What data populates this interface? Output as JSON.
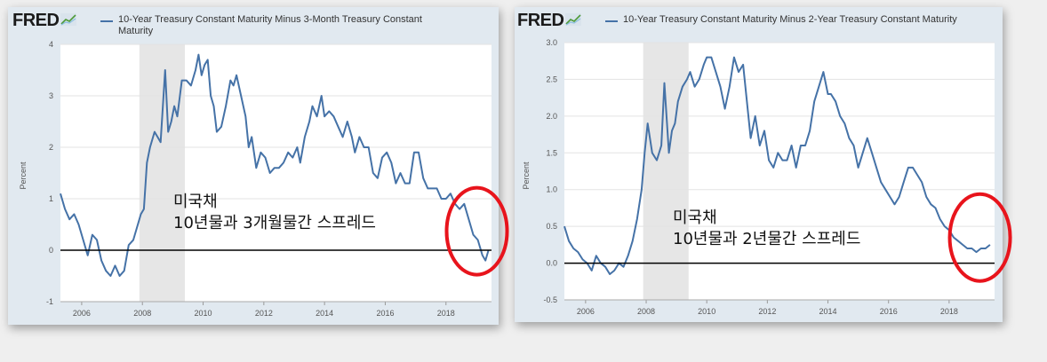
{
  "panels": [
    {
      "logo": "FRED",
      "legend": "10-Year Treasury Constant Maturity Minus 3-Month Treasury Constant Maturity",
      "legend_line1": "10-Year Treasury Constant Maturity Minus 3-Month Treasury Constant",
      "legend_line2": "Maturity",
      "ylabel": "Percent",
      "annotation_line1": "미국채",
      "annotation_line2": "10년물과 3개월물간 스프레드"
    },
    {
      "logo": "FRED",
      "legend": "10-Year Treasury Constant Maturity Minus 2-Year Treasury Constant Maturity",
      "ylabel": "Percent",
      "annotation_line1": "미국채",
      "annotation_line2": "10년물과 2년물간 스프레드"
    }
  ],
  "colors": {
    "line": "#4572a7",
    "recession": "#e6e6e6",
    "highlight_circle": "#e8141c",
    "zero_line": "#000000"
  },
  "chart_data": [
    {
      "type": "line",
      "title": "10-Year Treasury Constant Maturity Minus 3-Month Treasury Constant Maturity",
      "ylabel": "Percent",
      "xlim": [
        2005.3,
        2019.5
      ],
      "ylim": [
        -1,
        4
      ],
      "x_ticks": [
        "2006",
        "2008",
        "2010",
        "2012",
        "2014",
        "2016",
        "2018"
      ],
      "y_ticks": [
        "-1",
        "0",
        "1",
        "2",
        "3",
        "4"
      ],
      "grid": true,
      "recession": [
        2007.9,
        2009.4
      ],
      "reference_line": 0,
      "highlight": {
        "x": 2018.9,
        "y": 0.3
      },
      "series": [
        {
          "x": [
            2005.3,
            2005.45,
            2005.6,
            2005.75,
            2005.9,
            2006.05,
            2006.2,
            2006.35,
            2006.5,
            2006.65,
            2006.8,
            2006.95,
            2007.1,
            2007.25,
            2007.4,
            2007.55,
            2007.7,
            2007.85,
            2007.95,
            2008.05,
            2008.15,
            2008.25,
            2008.4,
            2008.5,
            2008.6,
            2008.75,
            2008.85,
            2008.95,
            2009.05,
            2009.15,
            2009.3,
            2009.45,
            2009.6,
            2009.75,
            2009.85,
            2009.95,
            2010.05,
            2010.15,
            2010.25,
            2010.35,
            2010.45,
            2010.6,
            2010.75,
            2010.9,
            2011.0,
            2011.1,
            2011.25,
            2011.4,
            2011.5,
            2011.6,
            2011.75,
            2011.9,
            2012.05,
            2012.2,
            2012.35,
            2012.5,
            2012.65,
            2012.8,
            2012.95,
            2013.1,
            2013.2,
            2013.35,
            2013.5,
            2013.6,
            2013.75,
            2013.9,
            2014.0,
            2014.15,
            2014.3,
            2014.45,
            2014.6,
            2014.75,
            2014.9,
            2015.0,
            2015.15,
            2015.3,
            2015.45,
            2015.6,
            2015.75,
            2015.9,
            2016.05,
            2016.2,
            2016.35,
            2016.5,
            2016.65,
            2016.8,
            2016.95,
            2017.1,
            2017.25,
            2017.4,
            2017.55,
            2017.7,
            2017.85,
            2018.0,
            2018.15,
            2018.3,
            2018.45,
            2018.6,
            2018.75,
            2018.9,
            2019.05,
            2019.2,
            2019.3,
            2019.4
          ],
          "y": [
            1.1,
            0.8,
            0.6,
            0.7,
            0.5,
            0.2,
            -0.1,
            0.3,
            0.2,
            -0.2,
            -0.4,
            -0.5,
            -0.3,
            -0.5,
            -0.4,
            0.1,
            0.2,
            0.5,
            0.7,
            0.8,
            1.7,
            2.0,
            2.3,
            2.2,
            2.1,
            3.5,
            2.3,
            2.5,
            2.8,
            2.6,
            3.3,
            3.3,
            3.2,
            3.5,
            3.8,
            3.4,
            3.6,
            3.7,
            3.0,
            2.8,
            2.3,
            2.4,
            2.8,
            3.3,
            3.2,
            3.4,
            3.0,
            2.6,
            2.0,
            2.2,
            1.6,
            1.9,
            1.8,
            1.5,
            1.6,
            1.6,
            1.7,
            1.9,
            1.8,
            2.0,
            1.7,
            2.2,
            2.5,
            2.8,
            2.6,
            3.0,
            2.6,
            2.7,
            2.6,
            2.4,
            2.2,
            2.5,
            2.2,
            1.9,
            2.2,
            2.0,
            2.0,
            1.5,
            1.4,
            1.8,
            1.9,
            1.7,
            1.3,
            1.5,
            1.3,
            1.3,
            1.9,
            1.9,
            1.4,
            1.2,
            1.2,
            1.2,
            1.0,
            1.0,
            1.1,
            0.9,
            0.8,
            0.9,
            0.6,
            0.3,
            0.2,
            -0.1,
            -0.2,
            0.0
          ]
        }
      ]
    },
    {
      "type": "line",
      "title": "10-Year Treasury Constant Maturity Minus 2-Year Treasury Constant Maturity",
      "ylabel": "Percent",
      "xlim": [
        2005.3,
        2019.5
      ],
      "ylim": [
        -0.5,
        3.0
      ],
      "x_ticks": [
        "2006",
        "2008",
        "2010",
        "2012",
        "2014",
        "2016",
        "2018"
      ],
      "y_ticks": [
        "-0.5",
        "0.0",
        "0.5",
        "1.0",
        "1.5",
        "2.0",
        "2.5",
        "3.0"
      ],
      "grid": true,
      "recession": [
        2007.9,
        2009.4
      ],
      "reference_line": 0,
      "highlight": {
        "x": 2018.9,
        "y": 0.3
      },
      "series": [
        {
          "x": [
            2005.3,
            2005.45,
            2005.6,
            2005.75,
            2005.9,
            2006.05,
            2006.2,
            2006.35,
            2006.5,
            2006.65,
            2006.8,
            2006.95,
            2007.1,
            2007.25,
            2007.4,
            2007.55,
            2007.7,
            2007.85,
            2007.95,
            2008.05,
            2008.2,
            2008.35,
            2008.5,
            2008.6,
            2008.75,
            2008.85,
            2008.95,
            2009.05,
            2009.2,
            2009.35,
            2009.45,
            2009.6,
            2009.75,
            2009.9,
            2010.0,
            2010.15,
            2010.3,
            2010.45,
            2010.6,
            2010.75,
            2010.9,
            2011.05,
            2011.2,
            2011.35,
            2011.45,
            2011.6,
            2011.75,
            2011.9,
            2012.05,
            2012.2,
            2012.35,
            2012.5,
            2012.65,
            2012.8,
            2012.95,
            2013.1,
            2013.25,
            2013.4,
            2013.55,
            2013.7,
            2013.85,
            2014.0,
            2014.1,
            2014.25,
            2014.4,
            2014.55,
            2014.7,
            2014.85,
            2015.0,
            2015.15,
            2015.3,
            2015.45,
            2015.6,
            2015.75,
            2015.9,
            2016.05,
            2016.2,
            2016.35,
            2016.5,
            2016.65,
            2016.8,
            2016.95,
            2017.1,
            2017.25,
            2017.4,
            2017.55,
            2017.7,
            2017.85,
            2018.0,
            2018.15,
            2018.3,
            2018.45,
            2018.6,
            2018.75,
            2018.9,
            2019.05,
            2019.2,
            2019.35
          ],
          "y": [
            0.5,
            0.3,
            0.2,
            0.15,
            0.05,
            0.0,
            -0.1,
            0.1,
            0.0,
            -0.05,
            -0.15,
            -0.1,
            0.0,
            -0.05,
            0.1,
            0.3,
            0.6,
            1.0,
            1.5,
            1.9,
            1.5,
            1.4,
            1.6,
            2.45,
            1.5,
            1.8,
            1.9,
            2.2,
            2.4,
            2.5,
            2.6,
            2.4,
            2.5,
            2.7,
            2.8,
            2.8,
            2.6,
            2.4,
            2.1,
            2.4,
            2.8,
            2.6,
            2.7,
            2.1,
            1.7,
            2.0,
            1.6,
            1.8,
            1.4,
            1.3,
            1.5,
            1.4,
            1.4,
            1.6,
            1.3,
            1.6,
            1.6,
            1.8,
            2.2,
            2.4,
            2.6,
            2.3,
            2.3,
            2.2,
            2.0,
            1.9,
            1.7,
            1.6,
            1.3,
            1.5,
            1.7,
            1.5,
            1.3,
            1.1,
            1.0,
            0.9,
            0.8,
            0.9,
            1.1,
            1.3,
            1.3,
            1.2,
            1.1,
            0.9,
            0.8,
            0.75,
            0.6,
            0.5,
            0.45,
            0.35,
            0.3,
            0.25,
            0.2,
            0.2,
            0.15,
            0.2,
            0.2,
            0.25
          ]
        }
      ]
    }
  ]
}
